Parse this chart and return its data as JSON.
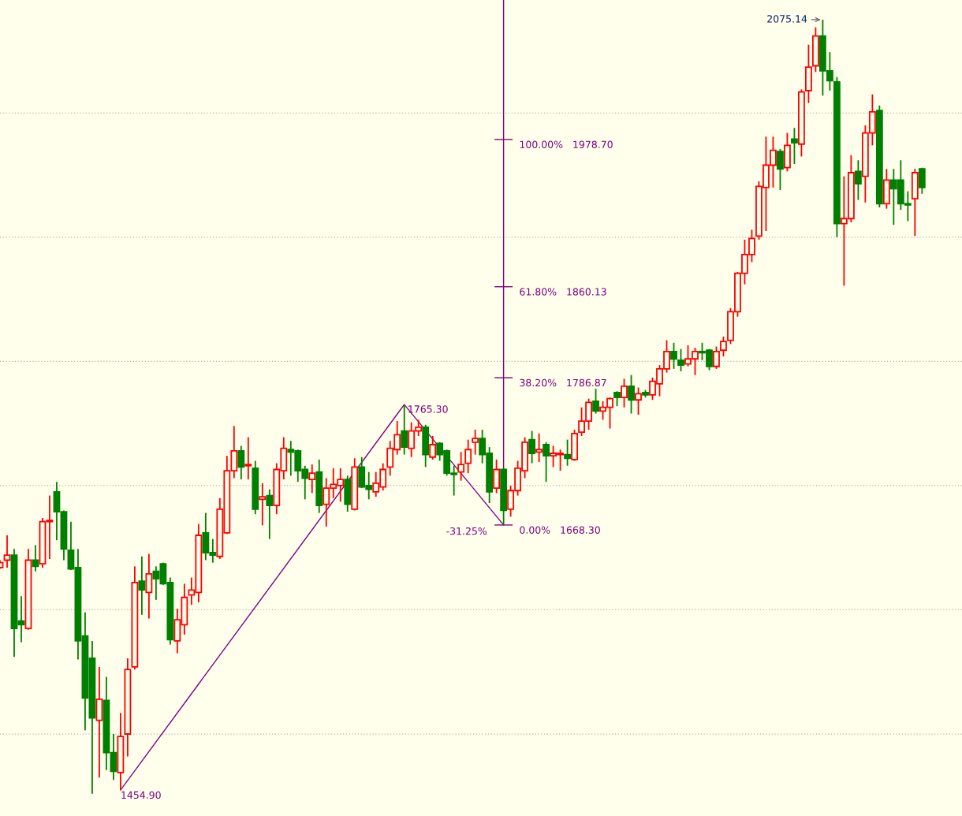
{
  "chart_data": {
    "type": "candlestick",
    "categories": [
      null,
      null,
      null,
      null,
      null,
      null,
      null,
      null,
      null,
      null,
      null,
      null,
      null,
      null,
      null,
      null,
      null,
      null,
      null,
      null,
      null,
      null,
      null,
      null,
      null,
      null,
      null,
      null,
      null,
      null,
      null,
      null,
      null,
      null,
      null,
      null,
      null,
      null,
      null,
      null,
      null,
      null,
      null,
      null,
      null,
      null,
      null,
      null,
      null,
      null,
      null,
      null,
      null,
      null,
      null,
      null,
      null,
      null,
      null,
      null,
      null,
      null,
      null,
      null,
      null,
      null,
      null,
      null,
      null,
      null,
      null,
      null,
      null,
      null,
      null,
      null,
      null,
      null,
      null,
      null,
      null,
      null,
      null,
      null,
      null,
      null,
      null,
      null,
      null,
      null,
      null,
      null,
      null,
      null,
      null,
      null,
      null,
      null,
      null,
      null,
      null,
      null,
      null,
      null,
      null,
      null,
      null,
      null,
      null,
      null,
      null,
      null,
      null,
      null,
      null,
      null,
      null,
      null,
      null,
      null,
      null,
      null,
      null,
      null,
      null,
      null,
      null,
      null,
      null,
      null,
      null
    ],
    "ohlc": [
      [
        1634,
        1640,
        1633,
        1638
      ],
      [
        1640,
        1660,
        1634,
        1644
      ],
      [
        1644,
        1649,
        1562,
        1585
      ],
      [
        1591,
        1611,
        1574,
        1588
      ],
      [
        1585,
        1649,
        1584,
        1640
      ],
      [
        1640,
        1652,
        1631,
        1635
      ],
      [
        1637,
        1674,
        1634,
        1671
      ],
      [
        1671,
        1692,
        1641,
        1672
      ],
      [
        1695,
        1703,
        1656,
        1679
      ],
      [
        1679,
        1680,
        1640,
        1649
      ],
      [
        1648,
        1671,
        1632,
        1633
      ],
      [
        1634,
        1649,
        1560,
        1575
      ],
      [
        1579,
        1598,
        1503,
        1529
      ],
      [
        1561,
        1575,
        1452,
        1513
      ],
      [
        1511,
        1554,
        1465,
        1528
      ],
      [
        1527,
        1546,
        1471,
        1485
      ],
      [
        1485,
        1500,
        1463,
        1470
      ],
      [
        1469,
        1517,
        1454.9,
        1498
      ],
      [
        1500,
        1561,
        1482,
        1552
      ],
      [
        1554,
        1635,
        1552,
        1622
      ],
      [
        1623,
        1643,
        1596,
        1616
      ],
      [
        1614,
        1645,
        1593,
        1629
      ],
      [
        1631,
        1635,
        1608,
        1625
      ],
      [
        1637,
        1638,
        1620,
        1621
      ],
      [
        1622,
        1626,
        1572,
        1576
      ],
      [
        1575,
        1601,
        1565,
        1592
      ],
      [
        1588,
        1621,
        1580,
        1610
      ],
      [
        1612,
        1626,
        1604,
        1616
      ],
      [
        1614,
        1669,
        1606,
        1660
      ],
      [
        1662,
        1678,
        1640,
        1646
      ],
      [
        1646,
        1657,
        1638,
        1644
      ],
      [
        1643,
        1690,
        1641,
        1681
      ],
      [
        1662,
        1724,
        1661,
        1712
      ],
      [
        1712,
        1748,
        1706,
        1728
      ],
      [
        1728,
        1732,
        1705,
        1715
      ],
      [
        1716,
        1739,
        1705,
        1717
      ],
      [
        1714,
        1720,
        1677,
        1681
      ],
      [
        1689,
        1702,
        1668,
        1691
      ],
      [
        1692,
        1697,
        1657,
        1684
      ],
      [
        1684,
        1718,
        1677,
        1713
      ],
      [
        1712,
        1739,
        1705,
        1730
      ],
      [
        1729,
        1736,
        1708,
        1727
      ],
      [
        1728,
        1729,
        1703,
        1712
      ],
      [
        1713,
        1716,
        1689,
        1706
      ],
      [
        1705,
        1717,
        1694,
        1710
      ],
      [
        1711,
        1721,
        1678,
        1684
      ],
      [
        1685,
        1706,
        1667,
        1698
      ],
      [
        1698,
        1714,
        1690,
        1701
      ],
      [
        1700,
        1714,
        1687,
        1705
      ],
      [
        1705,
        1708,
        1679,
        1685
      ],
      [
        1681,
        1722,
        1680,
        1715
      ],
      [
        1715,
        1723,
        1698,
        1699
      ],
      [
        1700,
        1711,
        1689,
        1697
      ],
      [
        1695,
        1711,
        1691,
        1702
      ],
      [
        1699,
        1718,
        1696,
        1713
      ],
      [
        1715,
        1736,
        1708,
        1730
      ],
      [
        1729,
        1752,
        1725,
        1741
      ],
      [
        1744,
        1765.3,
        1725,
        1731
      ],
      [
        1730,
        1751,
        1723,
        1744
      ],
      [
        1744,
        1753,
        1740,
        1747
      ],
      [
        1747,
        1749,
        1715,
        1725
      ],
      [
        1723,
        1740,
        1721,
        1733
      ],
      [
        1734,
        1735,
        1720,
        1725
      ],
      [
        1728,
        1729,
        1708,
        1710
      ],
      [
        1710,
        1716,
        1692,
        1709
      ],
      [
        1711,
        1727,
        1704,
        1717
      ],
      [
        1718,
        1737,
        1710,
        1729
      ],
      [
        1735,
        1745,
        1725,
        1738
      ],
      [
        1738,
        1745,
        1718,
        1725
      ],
      [
        1726,
        1731,
        1686,
        1695
      ],
      [
        1698,
        1721,
        1694,
        1713
      ],
      [
        1713,
        1714,
        1668.3,
        1680
      ],
      [
        1681,
        1700,
        1675,
        1696
      ],
      [
        1696,
        1720,
        1692,
        1714
      ],
      [
        1712,
        1739,
        1706,
        1735
      ],
      [
        1737,
        1744,
        1718,
        1726
      ],
      [
        1727,
        1742,
        1719,
        1729
      ],
      [
        1733,
        1735,
        1703,
        1724
      ],
      [
        1724,
        1732,
        1715,
        1726
      ],
      [
        1725,
        1729,
        1712,
        1726
      ],
      [
        1725,
        1737,
        1716,
        1722
      ],
      [
        1721,
        1745,
        1720,
        1742
      ],
      [
        1743,
        1763,
        1740,
        1752
      ],
      [
        1752,
        1770,
        1745,
        1767
      ],
      [
        1768,
        1778,
        1758,
        1760
      ],
      [
        1760,
        1768,
        1753,
        1763
      ],
      [
        1763,
        1771,
        1746,
        1770
      ],
      [
        1775,
        1776,
        1764,
        1771
      ],
      [
        1771,
        1786,
        1763,
        1780
      ],
      [
        1780,
        1789,
        1758,
        1769
      ],
      [
        1769,
        1779,
        1757,
        1774
      ],
      [
        1775,
        1777,
        1771,
        1773
      ],
      [
        1773,
        1787,
        1769,
        1784
      ],
      [
        1782,
        1797,
        1772,
        1794
      ],
      [
        1794,
        1817,
        1791,
        1808
      ],
      [
        1808,
        1815,
        1794,
        1802
      ],
      [
        1801,
        1810,
        1792,
        1797
      ],
      [
        1798,
        1813,
        1796,
        1802
      ],
      [
        1802,
        1811,
        1789,
        1808
      ],
      [
        1808,
        1815,
        1801,
        1807
      ],
      [
        1809,
        1810,
        1793,
        1796
      ],
      [
        1796,
        1812,
        1794,
        1808
      ],
      [
        1809,
        1820,
        1804,
        1816
      ],
      [
        1817,
        1843,
        1814,
        1840
      ],
      [
        1840,
        1872,
        1836,
        1871
      ],
      [
        1871,
        1898,
        1862,
        1886
      ],
      [
        1886,
        1906,
        1880,
        1899
      ],
      [
        1901,
        1945,
        1898,
        1941
      ],
      [
        1940,
        1981,
        1905,
        1958
      ],
      [
        1958,
        1981,
        1940,
        1970
      ],
      [
        1969,
        1971,
        1938,
        1955
      ],
      [
        1956,
        1984,
        1953,
        1974
      ],
      [
        1979,
        1988,
        1959,
        1976
      ],
      [
        1975,
        2019,
        1965,
        2017
      ],
      [
        2018,
        2055,
        2008,
        2037
      ],
      [
        2038,
        2069,
        2033,
        2062
      ],
      [
        2062,
        2075.14,
        2014,
        2034
      ],
      [
        2034,
        2049,
        2018,
        2026
      ],
      [
        2025,
        2029,
        1900,
        1911
      ],
      [
        1911,
        1949,
        1861,
        1915
      ],
      [
        1915,
        1966,
        1912,
        1952
      ],
      [
        1953,
        1962,
        1930,
        1943
      ],
      [
        1949,
        1990,
        1928,
        1984
      ],
      [
        1984,
        2015,
        1974,
        2001
      ],
      [
        2002,
        2006,
        1924,
        1927
      ],
      [
        1927,
        1955,
        1923,
        1946
      ],
      [
        1946,
        1955,
        1910,
        1939
      ],
      [
        1946,
        1962,
        1922,
        1927
      ],
      [
        1927,
        1937,
        1913,
        1926
      ],
      [
        1931,
        1955,
        1901,
        1952
      ],
      [
        1955,
        1956,
        1935,
        1940
      ]
    ],
    "colors": [
      "#ff0000",
      "#ff0000",
      "#008000",
      "#008000",
      "#ff0000",
      "#008000",
      "#ff0000",
      "#ff0000",
      "#008000",
      "#008000",
      "#008000",
      "#008000",
      "#008000",
      "#008000",
      "#ff0000",
      "#008000",
      "#008000",
      "#ff0000",
      "#ff0000",
      "#ff0000",
      "#008000",
      "#ff0000",
      "#008000",
      "#008000",
      "#008000",
      "#ff0000",
      "#ff0000",
      "#ff0000",
      "#ff0000",
      "#008000",
      "#008000",
      "#ff0000",
      "#ff0000",
      "#ff0000",
      "#008000",
      "#ff0000",
      "#008000",
      "#ff0000",
      "#008000",
      "#ff0000",
      "#ff0000",
      "#008000",
      "#008000",
      "#008000",
      "#ff0000",
      "#008000",
      "#ff0000",
      "#ff0000",
      "#ff0000",
      "#008000",
      "#ff0000",
      "#008000",
      "#008000",
      "#ff0000",
      "#ff0000",
      "#ff0000",
      "#ff0000",
      "#008000",
      "#ff0000",
      "#ff0000",
      "#008000",
      "#ff0000",
      "#008000",
      "#008000",
      "#008000",
      "#ff0000",
      "#ff0000",
      "#ff0000",
      "#008000",
      "#008000",
      "#ff0000",
      "#008000",
      "#ff0000",
      "#ff0000",
      "#ff0000",
      "#008000",
      "#ff0000",
      "#008000",
      "#ff0000",
      "#ff0000",
      "#008000",
      "#ff0000",
      "#ff0000",
      "#ff0000",
      "#008000",
      "#ff0000",
      "#ff0000",
      "#008000",
      "#ff0000",
      "#008000",
      "#ff0000",
      "#008000",
      "#ff0000",
      "#ff0000",
      "#ff0000",
      "#008000",
      "#008000",
      "#ff0000",
      "#ff0000",
      "#008000",
      "#008000",
      "#ff0000",
      "#ff0000",
      "#ff0000",
      "#ff0000",
      "#ff0000",
      "#ff0000",
      "#ff0000",
      "#ff0000",
      "#ff0000",
      "#008000",
      "#ff0000",
      "#008000",
      "#ff0000",
      "#ff0000",
      "#ff0000",
      "#008000",
      "#008000",
      "#008000",
      "#ff0000",
      "#ff0000",
      "#008000",
      "#ff0000",
      "#ff0000",
      "#008000",
      "#ff0000",
      "#008000",
      "#008000",
      "#008000",
      "#ff0000",
      "#008000"
    ],
    "series": [
      {
        "type": "line",
        "color": "#800080",
        "values": [
          null,
          null,
          null,
          null,
          null,
          null,
          null,
          null,
          null,
          null,
          null,
          null,
          null,
          null,
          null,
          null,
          null,
          1454.9,
          null,
          null,
          null,
          null,
          null,
          null,
          null,
          null,
          null,
          null,
          null,
          null,
          null,
          null,
          null,
          null,
          null,
          null,
          null,
          null,
          null,
          null,
          null,
          null,
          null,
          null,
          null,
          null,
          null,
          null,
          null,
          null,
          null,
          null,
          null,
          null,
          null,
          null,
          null,
          1765.3,
          null,
          null,
          null,
          null,
          null,
          null,
          null,
          null,
          null,
          null,
          null,
          null,
          null,
          1668.3,
          null,
          null,
          null,
          null,
          null,
          null,
          null,
          null,
          null,
          null,
          null,
          null,
          null,
          null,
          null,
          null,
          null,
          null,
          null,
          null,
          null,
          null,
          null,
          null,
          null,
          null,
          null,
          null,
          null,
          null,
          null,
          null,
          null,
          null,
          null,
          null,
          null,
          null,
          null,
          null,
          null,
          null,
          null,
          null,
          null,
          null,
          null,
          null,
          null,
          null,
          null,
          null,
          null,
          null,
          null,
          null,
          null,
          null,
          null
        ],
        "value_labels": [
          null,
          null,
          null,
          null,
          null,
          null,
          null,
          null,
          null,
          null,
          null,
          null,
          null,
          null,
          null,
          null,
          null,
          "1454.90",
          null,
          null,
          null,
          null,
          null,
          null,
          null,
          null,
          null,
          null,
          null,
          null,
          null,
          null,
          null,
          null,
          null,
          null,
          null,
          null,
          null,
          null,
          null,
          null,
          null,
          null,
          null,
          null,
          null,
          null,
          null,
          null,
          null,
          null,
          null,
          null,
          null,
          null,
          null,
          "1765.30",
          null,
          null,
          null,
          null,
          null,
          null,
          null,
          null,
          null,
          null,
          null,
          null,
          null,
          null,
          null,
          null,
          null,
          null,
          null,
          null,
          null,
          null,
          null,
          null,
          null,
          null,
          null,
          null,
          null,
          null,
          null,
          null,
          null,
          null,
          null,
          null,
          null,
          null,
          null,
          null,
          null,
          null,
          null,
          null,
          null,
          null,
          null,
          null,
          null,
          null,
          null,
          null,
          null,
          null,
          null,
          null,
          null,
          null,
          null,
          null,
          null,
          null,
          null,
          null,
          null,
          null,
          null,
          null,
          null,
          null,
          null,
          null,
          null
        ]
      }
    ],
    "ref_lines": [
      {
        "axis": "y",
        "value": 1978.7,
        "label": "100.00%   1978.70",
        "color": "#800080"
      },
      {
        "axis": "y",
        "value": 1860.13,
        "label": "61.80%   1860.13",
        "color": "#800080"
      },
      {
        "axis": "y",
        "value": 1786.87,
        "label": "38.20%   1786.87",
        "color": "#800080"
      },
      {
        "axis": "y",
        "value": 1668.3,
        "label": "0.00%   1668.30",
        "color": "#800080"
      }
    ],
    "annotations": [
      "2075.14",
      "-31.25%"
    ],
    "ylim": [
      1434,
      2091
    ],
    "yticks": [
      {
        "value": 1500,
        "label": null
      },
      {
        "value": 1600,
        "label": null
      },
      {
        "value": 1700,
        "label": null
      },
      {
        "value": 1800,
        "label": null
      },
      {
        "value": 1900,
        "label": null
      },
      {
        "value": 2000,
        "label": null
      }
    ],
    "grid": "y",
    "legend": false
  }
}
